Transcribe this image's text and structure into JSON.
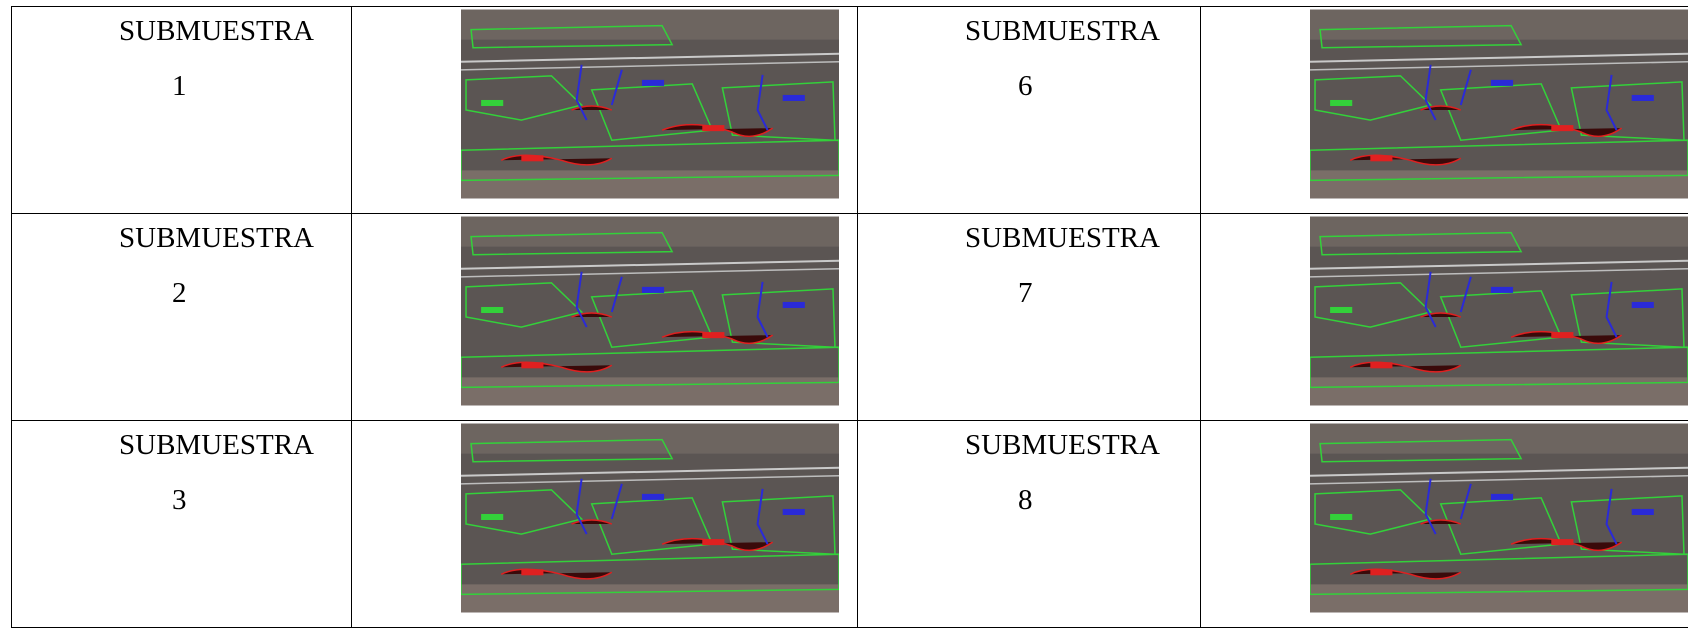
{
  "table": {
    "rows": [
      [
        {
          "label": "SUBMUESTRA",
          "number": "1"
        },
        {
          "label": "SUBMUESTRA",
          "number": "6"
        }
      ],
      [
        {
          "label": "SUBMUESTRA",
          "number": "2"
        },
        {
          "label": "SUBMUESTRA",
          "number": "7"
        }
      ],
      [
        {
          "label": "SUBMUESTRA",
          "number": "3"
        },
        {
          "label": "SUBMUESTRA",
          "number": "8"
        }
      ]
    ]
  }
}
